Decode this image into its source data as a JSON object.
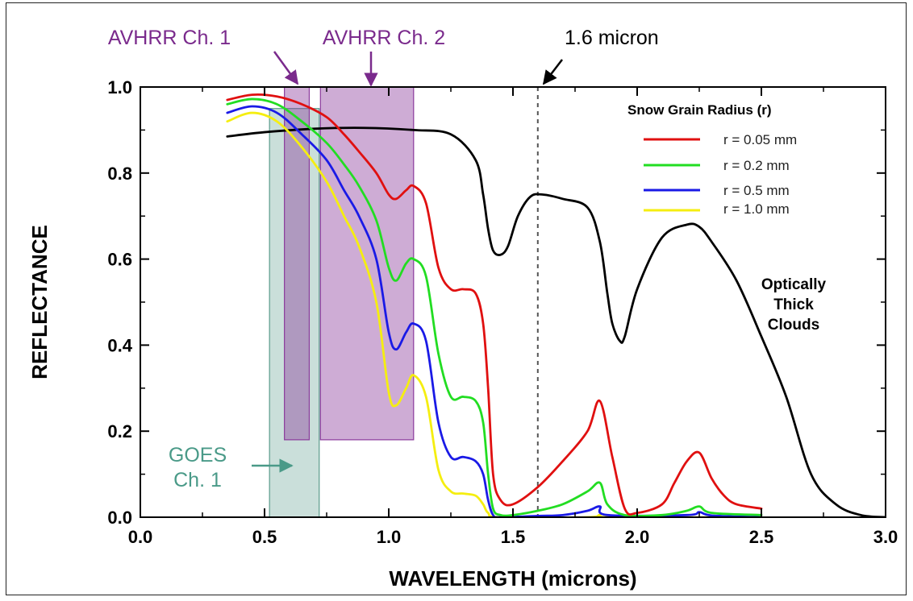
{
  "chart_data": {
    "type": "line",
    "xlabel": "WAVELENGTH (microns)",
    "ylabel": "REFLECTANCE",
    "xlim": [
      0.0,
      3.0
    ],
    "ylim": [
      0.0,
      1.0
    ],
    "x_ticks": [
      "0.0",
      "0.5",
      "1.0",
      "1.5",
      "2.0",
      "2.5",
      "3.0"
    ],
    "y_ticks": [
      "0.0",
      "0.2",
      "0.4",
      "0.6",
      "0.8",
      "1.0"
    ],
    "grid": false,
    "legend": {
      "title": "Snow Grain Radius (r)",
      "placement": "top-right",
      "entries": [
        "r = 0.05 mm",
        "r = 0.2 mm",
        "r = 0.5 mm",
        "r = 1.0 mm"
      ]
    },
    "series": [
      {
        "name": "r = 0.05 mm",
        "color": "#e01010",
        "x": [
          0.35,
          0.45,
          0.55,
          0.65,
          0.75,
          0.82,
          0.88,
          0.95,
          1.0,
          1.03,
          1.07,
          1.1,
          1.15,
          1.2,
          1.25,
          1.3,
          1.35,
          1.38,
          1.4,
          1.42,
          1.45,
          1.5,
          1.6,
          1.7,
          1.8,
          1.85,
          1.9,
          1.95,
          2.0,
          2.1,
          2.15,
          2.2,
          2.25,
          2.3,
          2.35,
          2.4,
          2.5
        ],
        "y": [
          0.97,
          0.982,
          0.978,
          0.96,
          0.93,
          0.89,
          0.85,
          0.8,
          0.75,
          0.74,
          0.76,
          0.77,
          0.73,
          0.58,
          0.53,
          0.53,
          0.52,
          0.45,
          0.3,
          0.1,
          0.04,
          0.03,
          0.07,
          0.13,
          0.2,
          0.27,
          0.14,
          0.02,
          0.01,
          0.03,
          0.08,
          0.13,
          0.15,
          0.09,
          0.05,
          0.03,
          0.02
        ]
      },
      {
        "name": "r = 0.2 mm",
        "color": "#22dd22",
        "x": [
          0.35,
          0.45,
          0.55,
          0.65,
          0.75,
          0.82,
          0.88,
          0.95,
          1.0,
          1.03,
          1.07,
          1.1,
          1.15,
          1.2,
          1.25,
          1.3,
          1.35,
          1.38,
          1.4,
          1.42,
          1.45,
          1.5,
          1.6,
          1.7,
          1.8,
          1.85,
          1.88,
          1.95,
          2.1,
          2.2,
          2.25,
          2.3,
          2.5
        ],
        "y": [
          0.96,
          0.972,
          0.96,
          0.92,
          0.87,
          0.82,
          0.77,
          0.69,
          0.58,
          0.55,
          0.59,
          0.6,
          0.56,
          0.38,
          0.28,
          0.28,
          0.27,
          0.22,
          0.1,
          0.02,
          0.005,
          0.005,
          0.015,
          0.03,
          0.06,
          0.08,
          0.03,
          0.005,
          0.005,
          0.015,
          0.025,
          0.01,
          0.005
        ]
      },
      {
        "name": "r = 0.5 mm",
        "color": "#1a1ae6",
        "x": [
          0.35,
          0.45,
          0.55,
          0.65,
          0.75,
          0.82,
          0.88,
          0.95,
          1.0,
          1.03,
          1.07,
          1.1,
          1.15,
          1.2,
          1.25,
          1.3,
          1.35,
          1.38,
          1.4,
          1.42,
          1.45,
          1.6,
          1.7,
          1.8,
          1.85,
          1.88,
          2.2,
          2.25,
          2.3,
          2.5
        ],
        "y": [
          0.94,
          0.955,
          0.94,
          0.89,
          0.83,
          0.76,
          0.7,
          0.6,
          0.43,
          0.39,
          0.43,
          0.45,
          0.41,
          0.22,
          0.14,
          0.14,
          0.13,
          0.1,
          0.04,
          0.005,
          0.0,
          0.003,
          0.005,
          0.015,
          0.025,
          0.005,
          0.005,
          0.012,
          0.004,
          0.0
        ]
      },
      {
        "name": "r = 1.0 mm",
        "color": "#f5ee10",
        "x": [
          0.35,
          0.45,
          0.55,
          0.65,
          0.75,
          0.82,
          0.88,
          0.95,
          1.0,
          1.03,
          1.07,
          1.1,
          1.15,
          1.2,
          1.25,
          1.3,
          1.35,
          1.38,
          1.4,
          1.45,
          1.8,
          1.85,
          1.9,
          2.5
        ],
        "y": [
          0.92,
          0.94,
          0.92,
          0.86,
          0.78,
          0.7,
          0.63,
          0.5,
          0.29,
          0.26,
          0.3,
          0.33,
          0.28,
          0.11,
          0.06,
          0.055,
          0.05,
          0.03,
          0.01,
          0.0,
          0.0,
          0.005,
          0.0,
          0.0
        ]
      },
      {
        "name": "Optically Thick Clouds",
        "color": "#000000",
        "x": [
          0.35,
          0.5,
          0.7,
          0.9,
          1.1,
          1.25,
          1.35,
          1.38,
          1.4,
          1.42,
          1.45,
          1.48,
          1.52,
          1.57,
          1.62,
          1.7,
          1.8,
          1.85,
          1.88,
          1.9,
          1.93,
          1.95,
          2.0,
          2.1,
          2.2,
          2.25,
          2.3,
          2.4,
          2.5,
          2.6,
          2.7,
          2.8,
          2.9,
          3.0
        ],
        "y": [
          0.885,
          0.895,
          0.903,
          0.905,
          0.9,
          0.89,
          0.83,
          0.75,
          0.67,
          0.62,
          0.61,
          0.63,
          0.7,
          0.745,
          0.75,
          0.74,
          0.72,
          0.64,
          0.52,
          0.45,
          0.41,
          0.42,
          0.53,
          0.65,
          0.68,
          0.675,
          0.64,
          0.55,
          0.42,
          0.28,
          0.1,
          0.03,
          0.005,
          0.0
        ]
      }
    ],
    "bands": [
      {
        "name": "AVHRR Ch. 1",
        "x_range": [
          0.58,
          0.68
        ],
        "y_range": [
          0.18,
          1.0
        ],
        "color": "#8b3a9c"
      },
      {
        "name": "AVHRR Ch. 2",
        "x_range": [
          0.725,
          1.1
        ],
        "y_range": [
          0.18,
          1.0
        ],
        "color": "#8b3a9c"
      },
      {
        "name": "GOES Ch. 1",
        "x_range": [
          0.52,
          0.72
        ],
        "y_range": [
          0.0,
          0.95
        ],
        "color": "#5b9b8c"
      }
    ],
    "reference_line": {
      "name": "1.6 micron",
      "x": 1.6
    },
    "annotations": {
      "avhrr_ch1": "AVHRR Ch. 1",
      "avhrr_ch2": "AVHRR Ch. 2",
      "marker_1_6": "1.6 micron",
      "goes_line1": "GOES",
      "goes_line2": "Ch. 1",
      "clouds_line1": "Optically",
      "clouds_line2": "Thick",
      "clouds_line3": "Clouds"
    }
  }
}
